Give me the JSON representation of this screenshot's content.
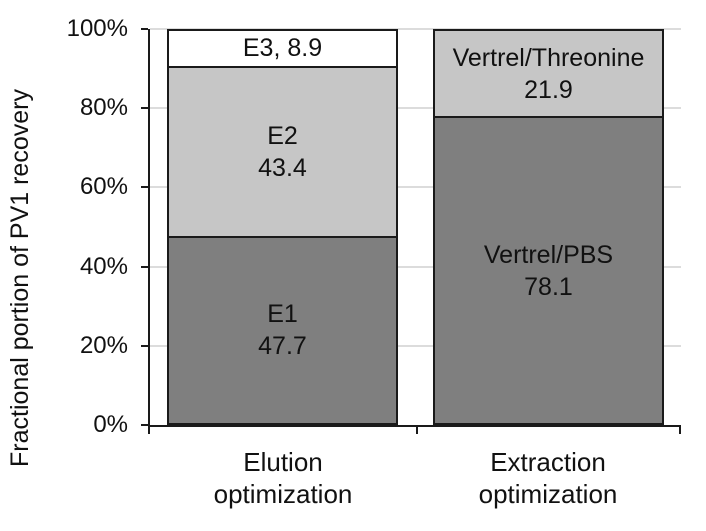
{
  "figure": {
    "ylabel": "Fractional portion of PV1 recovery"
  },
  "chart_data": {
    "type": "bar",
    "stacked": true,
    "percent_stacked": true,
    "title": "",
    "xlabel": "",
    "ylabel": "Fractional portion of PV1 recovery",
    "ylim": [
      0,
      100
    ],
    "ytick_labels": [
      "0%",
      "20%",
      "40%",
      "60%",
      "80%",
      "100%"
    ],
    "grid": true,
    "gridline_color": "#dcdcdc",
    "axis_color": "#1a1a1a",
    "categories": [
      "Elution optimization",
      "Extraction optimization"
    ],
    "bars": [
      {
        "category": "Elution optimization",
        "category_lines": [
          "Elution",
          "optimization"
        ],
        "segments": [
          {
            "label": "E1",
            "value": 47.7,
            "color": "#7f7f7f",
            "label_lines": [
              "E1",
              "47.7"
            ]
          },
          {
            "label": "E2",
            "value": 43.4,
            "color": "#c6c6c6",
            "label_lines": [
              "E2",
              "43.4"
            ]
          },
          {
            "label": "E3",
            "value": 8.9,
            "color": "#ffffff",
            "label_lines": [
              "E3, 8.9"
            ]
          }
        ]
      },
      {
        "category": "Extraction optimization",
        "category_lines": [
          "Extraction",
          "optimization"
        ],
        "segments": [
          {
            "label": "Vertrel/PBS",
            "value": 78.1,
            "color": "#7f7f7f",
            "label_lines": [
              "Vertrel/PBS",
              "78.1"
            ]
          },
          {
            "label": "Vertrel/Threonine",
            "value": 21.9,
            "color": "#c6c6c6",
            "label_lines": [
              "Vertrel/Threonine",
              "21.9"
            ]
          }
        ]
      }
    ]
  }
}
